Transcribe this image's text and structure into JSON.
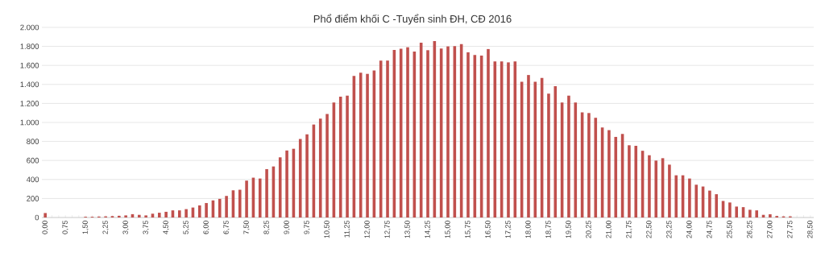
{
  "chart_data": {
    "type": "bar",
    "title": "Phổ điểm khối C -Tuyển sinh ĐH, CĐ 2016",
    "categories": [
      "0,00",
      null,
      null,
      "0,75",
      null,
      null,
      "1,50",
      null,
      null,
      "2,25",
      null,
      null,
      "3,00",
      null,
      null,
      "3,75",
      null,
      null,
      "4,50",
      null,
      null,
      "5,25",
      null,
      null,
      "6,00",
      null,
      null,
      "6,75",
      null,
      null,
      "7,50",
      null,
      null,
      "8,25",
      null,
      null,
      "9,00",
      null,
      null,
      "9,75",
      null,
      null,
      "10,50",
      null,
      null,
      "11,25",
      null,
      null,
      "12,00",
      null,
      null,
      "12,75",
      null,
      null,
      "13,50",
      null,
      null,
      "14,25",
      null,
      null,
      "15,00",
      null,
      null,
      "15,75",
      null,
      null,
      "16,50",
      null,
      null,
      "17,25",
      null,
      null,
      "18,00",
      null,
      null,
      "18,75",
      null,
      null,
      "19,50",
      null,
      null,
      "20,25",
      null,
      null,
      "21,00",
      null,
      null,
      "21,75",
      null,
      null,
      "22,50",
      null,
      null,
      "23,25",
      null,
      null,
      "24,00",
      null,
      null,
      "24,75",
      null,
      null,
      "25,50",
      null,
      null,
      "26,25",
      null,
      null,
      "27,00",
      null,
      null,
      "27,75",
      null,
      null,
      "28,50"
    ],
    "values": [
      47,
      0,
      0,
      0,
      0,
      0,
      8,
      8,
      10,
      12,
      15,
      18,
      22,
      35,
      28,
      22,
      40,
      50,
      60,
      75,
      75,
      88,
      105,
      127,
      152,
      180,
      196,
      227,
      286,
      292,
      388,
      419,
      410,
      509,
      537,
      633,
      705,
      723,
      826,
      875,
      978,
      1040,
      1089,
      1210,
      1272,
      1282,
      1490,
      1524,
      1511,
      1546,
      1651,
      1651,
      1763,
      1775,
      1791,
      1745,
      1838,
      1760,
      1856,
      1778,
      1800,
      1803,
      1825,
      1738,
      1710,
      1704,
      1772,
      1642,
      1642,
      1632,
      1642,
      1428,
      1499,
      1428,
      1468,
      1303,
      1381,
      1210,
      1282,
      1210,
      1105,
      1099,
      1049,
      947,
      919,
      848,
      879,
      760,
      754,
      702,
      655,
      599,
      624,
      556,
      444,
      444,
      410,
      345,
      326,
      283,
      245,
      174,
      158,
      115,
      109,
      81,
      75,
      28,
      34,
      16,
      12,
      12,
      0,
      0,
      0
    ],
    "color": "#c0504d",
    "ylim": [
      0,
      2000
    ],
    "yticks": [
      0,
      200,
      400,
      600,
      800,
      {
        "value": 1000,
        "label": "1.000"
      },
      {
        "value": 1200,
        "label": "1.200"
      },
      {
        "value": 1400,
        "label": "1.400"
      },
      {
        "value": 1600,
        "label": "1.600"
      },
      {
        "value": 1800,
        "label": "1.800"
      },
      {
        "value": 2000,
        "label": "2.000"
      }
    ],
    "grid": "y"
  }
}
